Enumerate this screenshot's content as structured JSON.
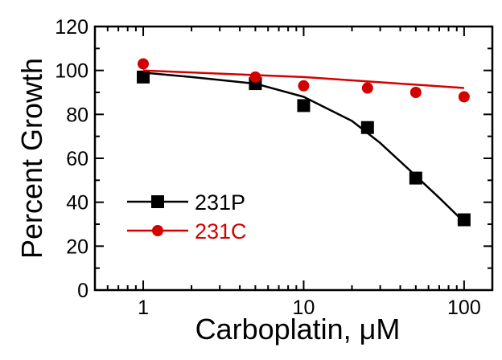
{
  "chart_data": {
    "type": "scatter",
    "title": "",
    "xlabel": "Carboplatin, μM",
    "ylabel": "Percent Growth",
    "xscale": "log",
    "xlim": [
      0.5,
      150
    ],
    "ylim": [
      0,
      120
    ],
    "xticks": [
      1,
      10,
      100
    ],
    "xtick_labels": [
      "1",
      "10",
      "100"
    ],
    "yticks": [
      0,
      20,
      40,
      60,
      80,
      100,
      120
    ],
    "ytick_labels": [
      "0",
      "20",
      "40",
      "60",
      "80",
      "100",
      "120"
    ],
    "grid": false,
    "legend_position": "lower-left",
    "series": [
      {
        "name": "231P",
        "color": "#000000",
        "marker": "square",
        "points": [
          {
            "x": 1,
            "y": 97
          },
          {
            "x": 5,
            "y": 94
          },
          {
            "x": 10,
            "y": 84
          },
          {
            "x": 25,
            "y": 74
          },
          {
            "x": 50,
            "y": 51
          },
          {
            "x": 100,
            "y": 32
          }
        ],
        "fit": [
          {
            "x": 1,
            "y": 99
          },
          {
            "x": 2,
            "y": 97
          },
          {
            "x": 5,
            "y": 94
          },
          {
            "x": 10,
            "y": 88
          },
          {
            "x": 20,
            "y": 77
          },
          {
            "x": 30,
            "y": 67
          },
          {
            "x": 50,
            "y": 52
          },
          {
            "x": 70,
            "y": 42
          },
          {
            "x": 100,
            "y": 31
          }
        ]
      },
      {
        "name": "231C",
        "color": "#d40000",
        "marker": "circle",
        "points": [
          {
            "x": 1,
            "y": 103
          },
          {
            "x": 5,
            "y": 97
          },
          {
            "x": 10,
            "y": 93
          },
          {
            "x": 25,
            "y": 92
          },
          {
            "x": 50,
            "y": 90
          },
          {
            "x": 100,
            "y": 88
          }
        ],
        "fit": [
          {
            "x": 1,
            "y": 100
          },
          {
            "x": 10,
            "y": 97
          },
          {
            "x": 100,
            "y": 92
          }
        ]
      }
    ]
  }
}
